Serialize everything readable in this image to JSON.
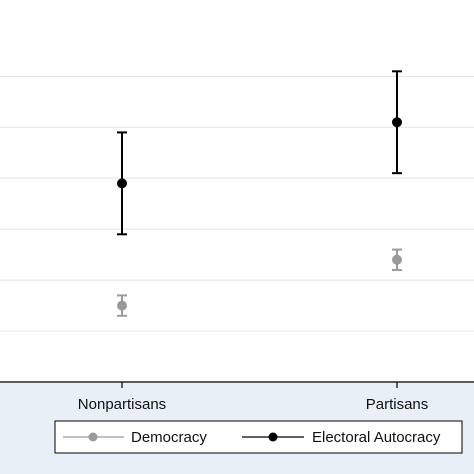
{
  "chart_data": {
    "type": "scatter",
    "categories": [
      "Nonpartisans",
      "Partisans"
    ],
    "ylim": [
      0,
      7.5
    ],
    "yticks": [
      1,
      2,
      3,
      4,
      5,
      6
    ],
    "grid": true,
    "legend_placement": "bottom",
    "series": [
      {
        "name": "Democracy",
        "color": "#9a9a9a",
        "values": [
          1.5,
          2.4
        ],
        "ci_low": [
          1.3,
          2.2
        ],
        "ci_high": [
          1.7,
          2.6
        ]
      },
      {
        "name": "Electoral Autocracy",
        "color": "#000000",
        "values": [
          3.9,
          5.1
        ],
        "ci_low": [
          2.9,
          4.1
        ],
        "ci_high": [
          4.9,
          6.1
        ]
      }
    ]
  }
}
